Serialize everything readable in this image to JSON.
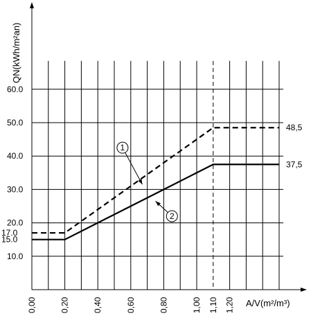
{
  "chart_data": {
    "type": "line",
    "title": "",
    "xlabel": "A/V(m²/m³)",
    "ylabel": "QN(kWh/m²an)",
    "xlim": [
      0,
      1.6
    ],
    "ylim": [
      0,
      68
    ],
    "x_ticks": [
      {
        "value": 0.0,
        "label": "0,00"
      },
      {
        "value": 0.2,
        "label": "0,20"
      },
      {
        "value": 0.4,
        "label": "0,40"
      },
      {
        "value": 0.6,
        "label": "0,60"
      },
      {
        "value": 0.8,
        "label": "0,80"
      },
      {
        "value": 1.0,
        "label": "1,00"
      },
      {
        "value": 1.1,
        "label": "1,10"
      },
      {
        "value": 1.2,
        "label": "1,20"
      }
    ],
    "y_ticks": [
      {
        "value": 10,
        "label": "10.0"
      },
      {
        "value": 20,
        "label": "20.0"
      },
      {
        "value": 30,
        "label": "30.0"
      },
      {
        "value": 40,
        "label": "40.0"
      },
      {
        "value": 50,
        "label": "50.0"
      },
      {
        "value": 60,
        "label": "60.0"
      }
    ],
    "y_special_ticks": [
      {
        "value": 17,
        "label": "17.0"
      },
      {
        "value": 15,
        "label": "15.0"
      }
    ],
    "grid": true,
    "reference_line_x": 1.1,
    "series": [
      {
        "id": "1",
        "style": "dashed",
        "color": "#000000",
        "points": [
          [
            0.0,
            17.0
          ],
          [
            0.2,
            17.0
          ],
          [
            1.1,
            48.5
          ],
          [
            1.5,
            48.5
          ]
        ],
        "end_label": "48,5",
        "callout": {
          "label": "1",
          "anchor": [
            0.67,
            31.5
          ],
          "circle": [
            0.55,
            42.5
          ]
        }
      },
      {
        "id": "2",
        "style": "solid",
        "color": "#000000",
        "points": [
          [
            0.0,
            15.0
          ],
          [
            0.2,
            15.0
          ],
          [
            1.1,
            37.5
          ],
          [
            1.5,
            37.5
          ]
        ],
        "end_label": "37,5",
        "callout": {
          "label": "2",
          "anchor": [
            0.75,
            26.5
          ],
          "circle": [
            0.85,
            22.0
          ]
        }
      }
    ]
  }
}
